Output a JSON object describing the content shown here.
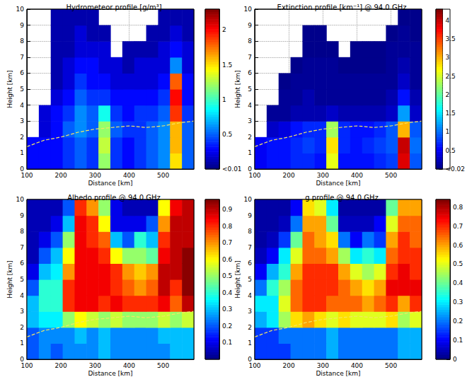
{
  "chart_data": [
    {
      "type": "heatmap",
      "title": "Hydrometeor profile [g/m³]",
      "x_label": "Distance [km]",
      "y_label": "Height [km]",
      "xlim": [
        100,
        590
      ],
      "xticks": [
        100,
        200,
        300,
        400,
        500
      ],
      "ylim": [
        0,
        10
      ],
      "yticks": [
        0,
        1,
        2,
        3,
        4,
        5,
        6,
        7,
        8,
        9,
        10
      ],
      "grid": true,
      "color": "jet",
      "x": [
        100,
        135,
        170,
        205,
        240,
        275,
        310,
        345,
        380,
        415,
        450,
        485,
        520,
        555,
        590
      ],
      "y": [
        0,
        1,
        2,
        3,
        4,
        5,
        6,
        7,
        8,
        9,
        10
      ],
      "cells": [
        [
          0.3,
          0.3,
          0.3,
          0.4,
          0.5,
          0.4,
          1.2,
          0.4,
          0.3,
          0.4,
          0.5,
          0.6,
          1.5,
          0.5
        ],
        [
          0.3,
          0.3,
          0.3,
          0.4,
          0.5,
          0.4,
          1.3,
          0.4,
          0.3,
          0.4,
          0.5,
          0.6,
          1.6,
          0.5
        ],
        [
          null,
          0.2,
          0.3,
          0.5,
          0.6,
          0.5,
          1.2,
          0.5,
          0.4,
          0.4,
          0.5,
          0.6,
          1.6,
          0.5
        ],
        [
          null,
          0.2,
          0.3,
          0.4,
          0.6,
          0.5,
          0.9,
          0.4,
          0.3,
          0.4,
          0.4,
          0.5,
          1.9,
          0.4
        ],
        [
          null,
          null,
          0.2,
          0.3,
          0.5,
          0.4,
          0.4,
          0.3,
          0.3,
          0.3,
          0.3,
          0.4,
          2.0,
          0.3
        ],
        [
          null,
          null,
          0.1,
          0.2,
          0.4,
          0.3,
          0.3,
          0.2,
          0.2,
          0.2,
          0.2,
          0.3,
          1.8,
          0.3
        ],
        [
          null,
          null,
          0.1,
          0.2,
          0.3,
          0.3,
          0.2,
          0.2,
          0.1,
          0.2,
          0.2,
          0.2,
          0.6,
          0.2
        ],
        [
          null,
          null,
          0.1,
          0.1,
          0.2,
          0.2,
          0.2,
          null,
          0.1,
          0.1,
          0.1,
          0.2,
          0.3,
          0.2
        ],
        [
          null,
          null,
          0.1,
          0.1,
          0.2,
          0.1,
          0.1,
          null,
          null,
          null,
          0.1,
          0.1,
          0.2,
          0.1
        ],
        [
          null,
          null,
          0.1,
          0.1,
          0.1,
          0.1,
          null,
          null,
          null,
          null,
          null,
          0.1,
          0.1,
          0.1
        ]
      ],
      "colorbar_lim": [
        0,
        2.3
      ],
      "colorbar_ticks": [
        {
          "value": 0,
          "label": "<0.01"
        },
        0.5,
        1,
        1.5,
        2
      ],
      "series": [
        {
          "type": "line",
          "color": "#f5e663",
          "line_style": "dashed",
          "x": [
            100,
            150,
            200,
            250,
            300,
            350,
            400,
            450,
            500,
            550,
            590
          ],
          "values": [
            1.4,
            1.8,
            2.0,
            2.3,
            2.5,
            2.6,
            2.7,
            2.6,
            2.7,
            2.9,
            3.0
          ]
        }
      ]
    },
    {
      "type": "heatmap",
      "title": "Extinction profile [km⁻¹] @ 94.0 GHz",
      "x_label": "Distance [km]",
      "y_label": "Height [km]",
      "xlim": [
        100,
        590
      ],
      "xticks": [
        100,
        200,
        300,
        400,
        500
      ],
      "ylim": [
        0,
        10
      ],
      "yticks": [
        0,
        1,
        2,
        3,
        4,
        5,
        6,
        7,
        8,
        9,
        10
      ],
      "grid": true,
      "color": "jet",
      "x": [
        100,
        135,
        170,
        205,
        240,
        275,
        310,
        345,
        380,
        415,
        450,
        485,
        520,
        555,
        590
      ],
      "y": [
        0,
        1,
        2,
        3,
        4,
        5,
        6,
        7,
        8,
        9,
        10
      ],
      "cells": [
        [
          0.5,
          0.6,
          0.6,
          0.7,
          0.7,
          0.6,
          2.6,
          0.6,
          0.6,
          0.6,
          0.7,
          0.8,
          3.9,
          0.9
        ],
        [
          0.5,
          0.6,
          0.6,
          0.7,
          0.8,
          0.7,
          2.8,
          0.7,
          0.6,
          0.7,
          0.8,
          0.9,
          4.0,
          1.0
        ],
        [
          null,
          0.3,
          0.4,
          0.6,
          0.7,
          0.7,
          2.3,
          0.7,
          0.6,
          0.6,
          0.7,
          0.9,
          3.0,
          0.9
        ],
        [
          null,
          0.1,
          0.1,
          0.2,
          0.2,
          0.2,
          0.3,
          0.2,
          0.2,
          0.2,
          0.2,
          0.3,
          1.2,
          0.3
        ],
        [
          null,
          null,
          0.1,
          0.1,
          0.2,
          0.1,
          0.1,
          0.1,
          0.1,
          0.1,
          0.1,
          0.2,
          0.6,
          0.2
        ],
        [
          null,
          null,
          0.05,
          0.1,
          0.1,
          0.1,
          0.1,
          0.1,
          0.1,
          0.1,
          0.1,
          0.1,
          0.3,
          0.1
        ],
        [
          null,
          null,
          null,
          0.05,
          0.1,
          0.1,
          0.1,
          0.05,
          0.05,
          0.05,
          0.05,
          0.1,
          0.2,
          0.1
        ],
        [
          null,
          null,
          null,
          null,
          0.05,
          0.05,
          0.05,
          null,
          0.05,
          0.05,
          0.05,
          0.1,
          0.1,
          0.1
        ],
        [
          null,
          null,
          null,
          null,
          0.05,
          0.05,
          null,
          null,
          null,
          null,
          null,
          0.05,
          0.1,
          0.05
        ],
        [
          null,
          null,
          null,
          null,
          null,
          null,
          null,
          null,
          null,
          null,
          null,
          null,
          0.05,
          0.05
        ]
      ],
      "colorbar_lim": [
        0,
        4.3
      ],
      "colorbar_ticks": [
        {
          "value": 0,
          "label": "<0.02"
        },
        0.5,
        1,
        1.5,
        2,
        2.5,
        3,
        3.5,
        4
      ],
      "series": [
        {
          "type": "line",
          "color": "#f5e663",
          "line_style": "dashed",
          "x": [
            100,
            150,
            200,
            250,
            300,
            350,
            400,
            450,
            500,
            550,
            590
          ],
          "values": [
            1.4,
            1.8,
            2.0,
            2.3,
            2.5,
            2.6,
            2.7,
            2.6,
            2.7,
            2.9,
            3.0
          ]
        }
      ]
    },
    {
      "type": "heatmap",
      "title": "Albedo profile @ 94.0 GHz",
      "x_label": "Distance [km]",
      "y_label": "Height [km]",
      "xlim": [
        100,
        590
      ],
      "xticks": [
        100,
        200,
        300,
        400,
        500
      ],
      "ylim": [
        0,
        10
      ],
      "yticks": [
        0,
        1,
        2,
        3,
        4,
        5,
        6,
        7,
        8,
        9,
        10
      ],
      "grid": true,
      "color": "jet",
      "x": [
        100,
        135,
        170,
        205,
        240,
        275,
        310,
        345,
        380,
        415,
        450,
        485,
        520,
        555,
        590
      ],
      "y": [
        0,
        1,
        2,
        3,
        4,
        5,
        6,
        7,
        8,
        9,
        10
      ],
      "cells": [
        [
          0.2,
          0.25,
          0.2,
          0.25,
          0.25,
          0.25,
          0.3,
          0.25,
          0.25,
          0.25,
          0.25,
          0.25,
          0.3,
          0.3
        ],
        [
          0.2,
          0.25,
          0.25,
          0.25,
          0.3,
          0.25,
          0.3,
          0.25,
          0.25,
          0.25,
          0.25,
          0.3,
          0.3,
          0.3
        ],
        [
          0.3,
          0.35,
          0.35,
          0.5,
          0.6,
          0.55,
          0.5,
          0.55,
          0.5,
          0.5,
          0.5,
          0.55,
          0.5,
          0.55
        ],
        [
          0.3,
          0.4,
          0.4,
          0.8,
          0.85,
          0.85,
          0.8,
          0.85,
          0.8,
          0.8,
          0.8,
          0.85,
          0.75,
          0.9
        ],
        [
          0.2,
          0.4,
          0.4,
          0.8,
          0.85,
          0.85,
          0.85,
          0.8,
          0.75,
          0.7,
          0.75,
          0.9,
          0.8,
          0.95
        ],
        [
          0.1,
          0.3,
          0.35,
          0.7,
          0.85,
          0.85,
          0.85,
          0.8,
          0.7,
          0.65,
          0.7,
          0.9,
          0.9,
          0.95
        ],
        [
          0.05,
          0.2,
          0.3,
          0.6,
          0.85,
          0.85,
          0.8,
          0.6,
          0.5,
          0.5,
          0.45,
          0.85,
          0.9,
          0.95
        ],
        [
          0.05,
          0.1,
          0.2,
          0.5,
          0.85,
          0.8,
          0.75,
          0.3,
          0.2,
          0.4,
          0.3,
          0.8,
          0.9,
          0.9
        ],
        [
          0.05,
          0.05,
          0.1,
          0.3,
          0.85,
          0.8,
          0.6,
          0.1,
          0.1,
          0.1,
          0.2,
          0.7,
          0.9,
          0.9
        ],
        [
          0.05,
          0.05,
          0.05,
          0.2,
          0.8,
          0.7,
          0.5,
          0.1,
          0.05,
          0.05,
          0.05,
          0.6,
          0.85,
          0.9
        ]
      ],
      "colorbar_lim": [
        0,
        0.96
      ],
      "colorbar_ticks": [
        0.1,
        0.2,
        0.3,
        0.4,
        0.5,
        0.6,
        0.7,
        0.8,
        0.9
      ],
      "series": [
        {
          "type": "line",
          "color": "#f5e663",
          "line_style": "dashed",
          "x": [
            100,
            150,
            200,
            250,
            300,
            350,
            400,
            450,
            500,
            550,
            590
          ],
          "values": [
            1.4,
            1.8,
            2.0,
            2.3,
            2.5,
            2.6,
            2.7,
            2.6,
            2.7,
            2.9,
            3.0
          ]
        }
      ]
    },
    {
      "type": "heatmap",
      "title": "g profile @ 94.0 GHz",
      "x_label": "Distance [km]",
      "y_label": "Height [km]",
      "xlim": [
        100,
        590
      ],
      "xticks": [
        100,
        200,
        300,
        400,
        500
      ],
      "ylim": [
        0,
        10
      ],
      "yticks": [
        0,
        1,
        2,
        3,
        4,
        5,
        6,
        7,
        8,
        9,
        10
      ],
      "grid": true,
      "color": "jet",
      "x": [
        100,
        135,
        170,
        205,
        240,
        275,
        310,
        345,
        380,
        415,
        450,
        485,
        520,
        555,
        590
      ],
      "y": [
        0,
        1,
        2,
        3,
        4,
        5,
        6,
        7,
        8,
        9,
        10
      ],
      "cells": [
        [
          0.15,
          0.15,
          0.15,
          0.2,
          0.2,
          0.2,
          0.25,
          0.2,
          0.2,
          0.2,
          0.2,
          0.2,
          0.25,
          0.25
        ],
        [
          0.15,
          0.15,
          0.2,
          0.2,
          0.2,
          0.2,
          0.25,
          0.2,
          0.2,
          0.2,
          0.2,
          0.2,
          0.25,
          0.25
        ],
        [
          0.25,
          0.3,
          0.45,
          0.55,
          0.6,
          0.55,
          0.5,
          0.55,
          0.5,
          0.5,
          0.5,
          0.55,
          0.45,
          0.5
        ],
        [
          0.3,
          0.3,
          0.5,
          0.65,
          0.7,
          0.7,
          0.65,
          0.65,
          0.65,
          0.6,
          0.65,
          0.7,
          0.6,
          0.7
        ],
        [
          0.2,
          0.35,
          0.45,
          0.65,
          0.7,
          0.7,
          0.7,
          0.65,
          0.6,
          0.55,
          0.6,
          0.75,
          0.75,
          0.75
        ],
        [
          0.1,
          0.25,
          0.35,
          0.6,
          0.7,
          0.7,
          0.7,
          0.6,
          0.5,
          0.45,
          0.5,
          0.7,
          0.75,
          0.7
        ],
        [
          0.05,
          0.1,
          0.3,
          0.5,
          0.65,
          0.65,
          0.6,
          0.45,
          0.3,
          0.35,
          0.3,
          0.65,
          0.7,
          0.7
        ],
        [
          0.03,
          0.05,
          0.15,
          0.4,
          0.65,
          0.6,
          0.55,
          0.2,
          0.1,
          0.2,
          0.15,
          0.6,
          0.7,
          0.65
        ],
        [
          0.03,
          0.03,
          0.05,
          0.2,
          0.6,
          0.6,
          0.4,
          0.05,
          0.05,
          0.05,
          0.1,
          0.5,
          0.65,
          0.65
        ],
        [
          0.03,
          0.03,
          0.03,
          0.1,
          0.55,
          0.5,
          0.3,
          0.03,
          0.03,
          0.03,
          0.03,
          0.4,
          0.6,
          0.6
        ]
      ],
      "colorbar_lim": [
        0,
        0.84
      ],
      "colorbar_ticks": [
        0,
        0.1,
        0.2,
        0.3,
        0.4,
        0.5,
        0.6,
        0.7,
        0.8
      ],
      "series": [
        {
          "type": "line",
          "color": "#f5e663",
          "line_style": "dashed",
          "x": [
            100,
            150,
            200,
            250,
            300,
            350,
            400,
            450,
            500,
            550,
            590
          ],
          "values": [
            1.4,
            1.8,
            2.0,
            2.3,
            2.5,
            2.6,
            2.7,
            2.6,
            2.7,
            2.9,
            3.0
          ]
        }
      ]
    }
  ]
}
